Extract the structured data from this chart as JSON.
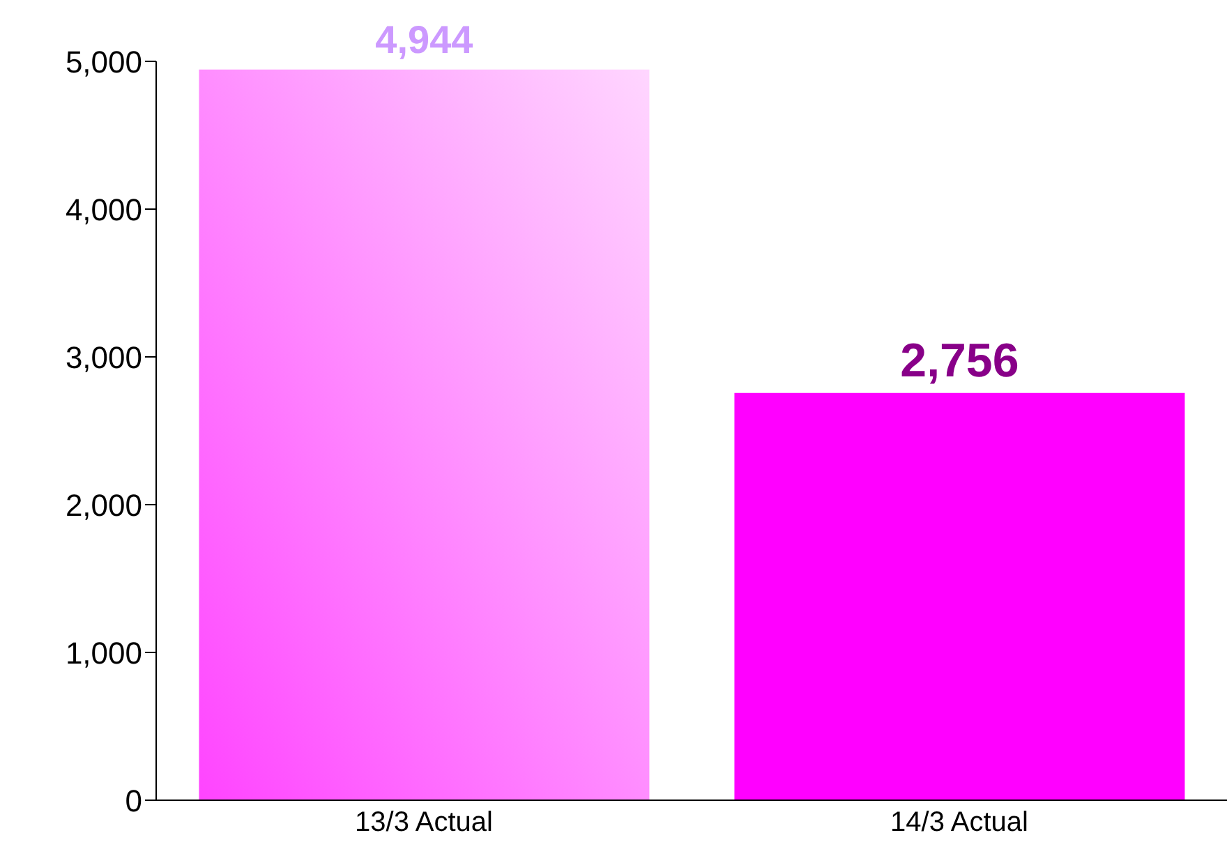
{
  "chart_data": {
    "type": "bar",
    "categories": [
      "13/3 Actual",
      "14/3 Actual"
    ],
    "values": [
      4944,
      2756
    ],
    "colors": [
      "#ff88ff",
      "#ff00ff"
    ],
    "ylim": [
      0,
      5000
    ],
    "yticks": [
      {
        "value": 0,
        "label": "0"
      },
      {
        "value": 1000,
        "label": "1,000"
      },
      {
        "value": 2000,
        "label": "2,000"
      },
      {
        "value": 3000,
        "label": "3,000"
      },
      {
        "value": 4000,
        "label": "4,000"
      },
      {
        "value": 5000,
        "label": "5,000"
      }
    ],
    "value_labels": [
      "4,944",
      "2,756"
    ],
    "grid": false,
    "legend": false
  }
}
